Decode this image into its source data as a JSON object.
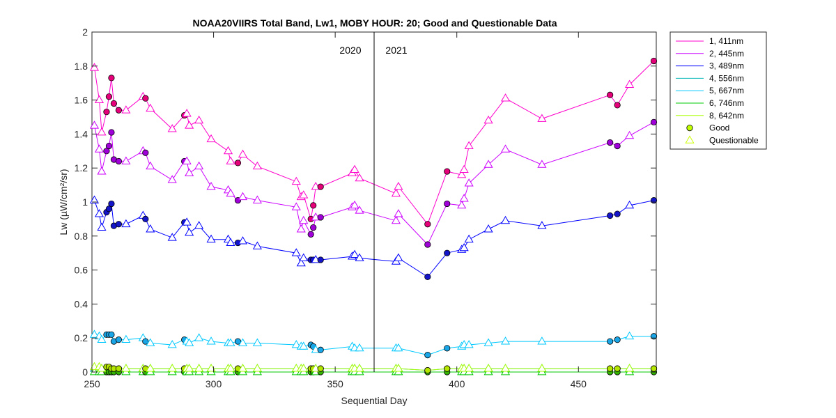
{
  "chart_data": {
    "type": "line",
    "title": "NOAA20VIIRS Total Band,  Lw1, MOBY HOUR: 20;  Good and Questionable Data",
    "xlabel": "Sequential Day",
    "ylabel": "Lw (µW/cm²/sr)",
    "xlim": [
      250,
      482
    ],
    "ylim": [
      0,
      2
    ],
    "x_ticks": [
      250,
      300,
      350,
      400,
      450
    ],
    "y_ticks": [
      0,
      0.2,
      0.4,
      0.6,
      0.8,
      1,
      1.2,
      1.4,
      1.6,
      1.8,
      2
    ],
    "x_tick_labels": [
      "250",
      "300",
      "350",
      "400",
      "450"
    ],
    "y_tick_labels": [
      "0",
      "0.2",
      "0.4",
      "0.6",
      "0.8",
      "1",
      "1.2",
      "1.4",
      "1.6",
      "1.8",
      "2"
    ],
    "year_divider": {
      "x": 366,
      "left_label": "2020",
      "right_label": "2021"
    },
    "grid": false,
    "legend_position": "outside-top-right",
    "x": [
      251,
      253,
      254,
      256,
      257,
      258,
      259,
      261,
      264,
      271,
      272,
      274,
      283,
      288,
      289,
      290,
      294,
      299,
      306,
      307,
      310,
      312,
      318,
      334,
      336,
      337,
      340,
      341,
      342,
      344,
      357,
      358,
      360,
      375,
      376,
      388,
      396,
      402,
      403,
      405,
      413,
      420,
      435,
      463,
      466,
      471,
      481
    ],
    "quality": [
      "Q",
      "Q",
      "Q",
      "G",
      "G",
      "G",
      "G",
      "G",
      "Q",
      "Q",
      "G",
      "Q",
      "Q",
      "G",
      "Q",
      "Q",
      "Q",
      "Q",
      "Q",
      "Q",
      "G",
      "Q",
      "Q",
      "Q",
      "Q",
      "Q",
      "G",
      "G",
      "Q",
      "G",
      "Q",
      "Q",
      "Q",
      "Q",
      "Q",
      "G",
      "G",
      "Q",
      "Q",
      "Q",
      "Q",
      "Q",
      "Q",
      "G",
      "G",
      "Q",
      "G"
    ],
    "series": [
      {
        "name": "1, 411nm",
        "color": "#ff00cc",
        "good_fill": "#e5007a",
        "values": [
          1.79,
          1.6,
          1.41,
          1.53,
          1.62,
          1.73,
          1.58,
          1.54,
          1.54,
          1.62,
          1.61,
          1.55,
          1.43,
          1.51,
          1.52,
          1.45,
          1.48,
          1.37,
          1.3,
          1.24,
          1.23,
          1.28,
          1.21,
          1.12,
          1.03,
          1.04,
          0.9,
          0.98,
          1.09,
          1.09,
          1.17,
          1.19,
          1.14,
          1.05,
          1.09,
          0.87,
          1.18,
          1.16,
          1.19,
          1.33,
          1.48,
          1.61,
          1.49,
          1.63,
          1.57,
          1.69,
          1.83
        ]
      },
      {
        "name": "2, 445nm",
        "color": "#cc00ff",
        "good_fill": "#a000d8",
        "values": [
          1.45,
          1.31,
          1.18,
          1.3,
          1.33,
          1.41,
          1.25,
          1.24,
          1.24,
          1.3,
          1.29,
          1.21,
          1.13,
          1.24,
          1.24,
          1.17,
          1.21,
          1.09,
          1.07,
          1.05,
          1.01,
          1.03,
          1.01,
          0.97,
          0.84,
          0.89,
          0.81,
          0.85,
          0.91,
          0.91,
          0.97,
          0.98,
          0.95,
          0.89,
          0.93,
          0.75,
          0.99,
          0.98,
          1.02,
          1.11,
          1.22,
          1.31,
          1.22,
          1.35,
          1.33,
          1.39,
          1.47
        ]
      },
      {
        "name": "3, 489nm",
        "color": "#0000ff",
        "good_fill": "#1414c8",
        "values": [
          1.01,
          0.93,
          0.85,
          0.94,
          0.96,
          0.99,
          0.86,
          0.87,
          0.87,
          0.92,
          0.9,
          0.84,
          0.79,
          0.88,
          0.88,
          0.82,
          0.86,
          0.78,
          0.78,
          0.76,
          0.76,
          0.77,
          0.74,
          0.7,
          0.64,
          0.67,
          0.66,
          0.66,
          0.66,
          0.66,
          0.68,
          0.69,
          0.67,
          0.65,
          0.67,
          0.56,
          0.7,
          0.72,
          0.73,
          0.78,
          0.84,
          0.89,
          0.86,
          0.92,
          0.93,
          0.98,
          1.01
        ]
      },
      {
        "name": "4, 556nm",
        "color": "#00b4b4",
        "good_fill": "#00a0a0",
        "values": [
          0.02,
          0.02,
          0.02,
          0.02,
          0.02,
          0.02,
          0.02,
          0.02,
          0.02,
          0.02,
          0.02,
          0.02,
          0.02,
          0.02,
          0.02,
          0.02,
          0.02,
          0.02,
          0.02,
          0.02,
          0.02,
          0.02,
          0.02,
          0.02,
          0.02,
          0.02,
          0.02,
          0.02,
          0.02,
          0.02,
          0.02,
          0.02,
          0.02,
          0.02,
          0.02,
          0.01,
          0.02,
          0.02,
          0.02,
          0.02,
          0.02,
          0.02,
          0.02,
          0.02,
          0.02,
          0.02,
          0.02
        ]
      },
      {
        "name": "5, 667nm",
        "color": "#00c8ff",
        "good_fill": "#1aa6e6",
        "values": [
          0.22,
          0.21,
          0.19,
          0.22,
          0.22,
          0.22,
          0.18,
          0.19,
          0.19,
          0.2,
          0.18,
          0.17,
          0.16,
          0.19,
          0.18,
          0.17,
          0.2,
          0.18,
          0.17,
          0.17,
          0.18,
          0.17,
          0.17,
          0.16,
          0.15,
          0.15,
          0.16,
          0.15,
          0.13,
          0.13,
          0.15,
          0.14,
          0.14,
          0.14,
          0.14,
          0.1,
          0.14,
          0.15,
          0.16,
          0.16,
          0.17,
          0.18,
          0.18,
          0.18,
          0.19,
          0.21,
          0.21
        ]
      },
      {
        "name": "6, 746nm",
        "color": "#00c800",
        "good_fill": "#33b300",
        "values": [
          0.0,
          0.0,
          0.0,
          0.0,
          0.0,
          0.0,
          0.0,
          0.0,
          0.0,
          0.0,
          0.0,
          0.0,
          0.0,
          0.0,
          0.0,
          0.0,
          0.0,
          0.0,
          0.0,
          0.0,
          0.0,
          0.0,
          0.0,
          0.0,
          0.0,
          0.0,
          0.0,
          0.0,
          0.0,
          0.0,
          0.0,
          0.0,
          0.0,
          0.0,
          0.0,
          0.0,
          0.0,
          0.0,
          0.0,
          0.0,
          0.0,
          0.0,
          0.0,
          0.0,
          0.0,
          0.0,
          0.0
        ]
      },
      {
        "name": "8, 642nm",
        "color": "#aaff00",
        "good_fill": "#b4e600",
        "values": [
          0.03,
          0.03,
          0.02,
          0.03,
          0.03,
          0.02,
          0.02,
          0.02,
          0.02,
          0.02,
          0.02,
          0.02,
          0.02,
          0.02,
          0.02,
          0.02,
          0.02,
          0.02,
          0.02,
          0.02,
          0.02,
          0.02,
          0.02,
          0.02,
          0.02,
          0.02,
          0.02,
          0.02,
          0.02,
          0.02,
          0.02,
          0.02,
          0.02,
          0.02,
          0.02,
          0.01,
          0.02,
          0.02,
          0.02,
          0.02,
          0.02,
          0.02,
          0.02,
          0.02,
          0.02,
          0.02,
          0.02
        ]
      }
    ],
    "legend_extra": [
      {
        "name": "Good",
        "marker": "circle",
        "fill": "#bfff00",
        "stroke": "#000000"
      },
      {
        "name": "Questionable",
        "marker": "triangle",
        "fill": "none",
        "stroke": "#ccff00"
      }
    ]
  }
}
